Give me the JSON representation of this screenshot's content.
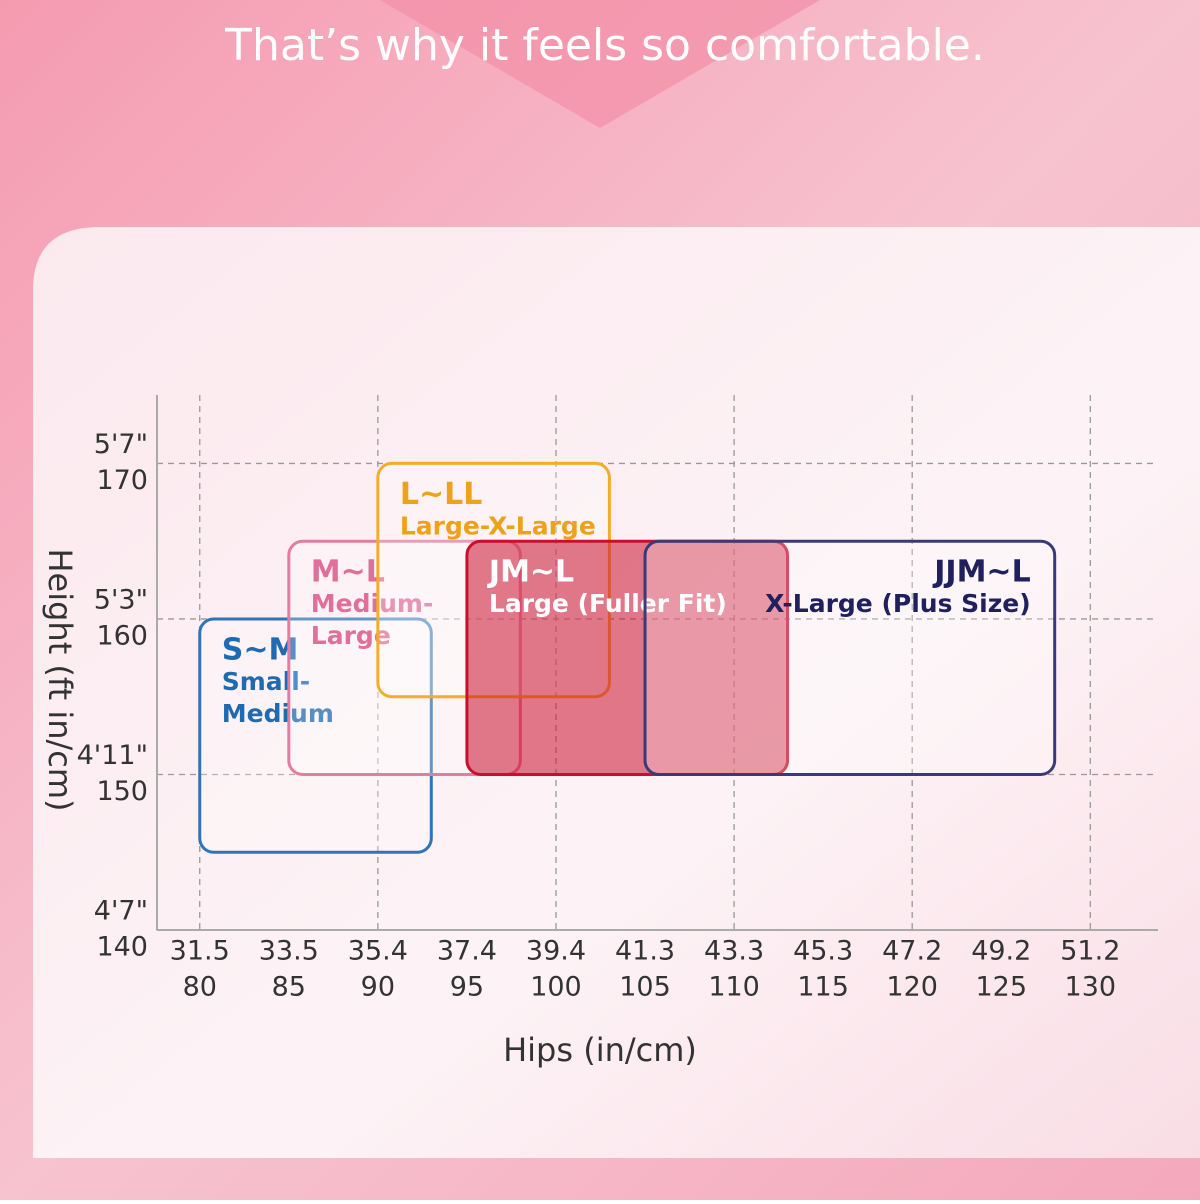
{
  "chart_data": {
    "type": "box-range",
    "title": "That’s why it feels so comfortable.",
    "x_label": "Hips (in/cm)",
    "y_label": "Height (ft in/cm)",
    "xlim": [
      77.6,
      133.8
    ],
    "ylim": [
      140,
      174.4
    ],
    "xticks": [
      80,
      85,
      90,
      95,
      100,
      105,
      110,
      115,
      120,
      125,
      130
    ],
    "xticks_in": [
      "31.5",
      "33.5",
      "35.4",
      "37.4",
      "39.4",
      "41.3",
      "43.3",
      "45.3",
      "47.2",
      "49.2",
      "51.2"
    ],
    "yticks": [
      140,
      150,
      160,
      170
    ],
    "yticks_ft": [
      "4'7\"",
      "4'11\"",
      "5'3\"",
      "5'7\""
    ],
    "xgrid": [
      80,
      90,
      100,
      110,
      120,
      130
    ],
    "ygrid": [
      150,
      160,
      170
    ],
    "series": [
      {
        "name": "S~M",
        "lines": [
          "Small-",
          "Medium"
        ],
        "color": "#2f74b9",
        "text_color": "#1f6ab0",
        "filled": false,
        "align": "left",
        "x": [
          80,
          93
        ],
        "y": [
          145,
          160
        ]
      },
      {
        "name": "M~L",
        "lines": [
          "Medium-",
          "Large"
        ],
        "color": "#e47ba0",
        "text_color": "#e0709a",
        "filled": false,
        "align": "left",
        "x": [
          85,
          98
        ],
        "y": [
          150,
          165
        ]
      },
      {
        "name": "L~LL",
        "lines": [
          "Large-X-Large"
        ],
        "color": "#f2ad2a",
        "text_color": "#eea21c",
        "filled": false,
        "align": "left",
        "x": [
          90,
          103
        ],
        "y": [
          155,
          170
        ]
      },
      {
        "name": "JM~L",
        "lines": [
          "Large (Fuller Fit)"
        ],
        "color": "#c8102e",
        "text_color": "#ffffff",
        "filled": true,
        "align": "left",
        "x": [
          95,
          113
        ],
        "y": [
          150,
          165
        ]
      },
      {
        "name": "JJM~L",
        "lines": [
          "X-Large (Plus Size)"
        ],
        "color": "#3a3a78",
        "text_color": "#20205e",
        "filled": false,
        "align": "right",
        "x": [
          105,
          128
        ],
        "y": [
          150,
          165
        ]
      }
    ]
  }
}
